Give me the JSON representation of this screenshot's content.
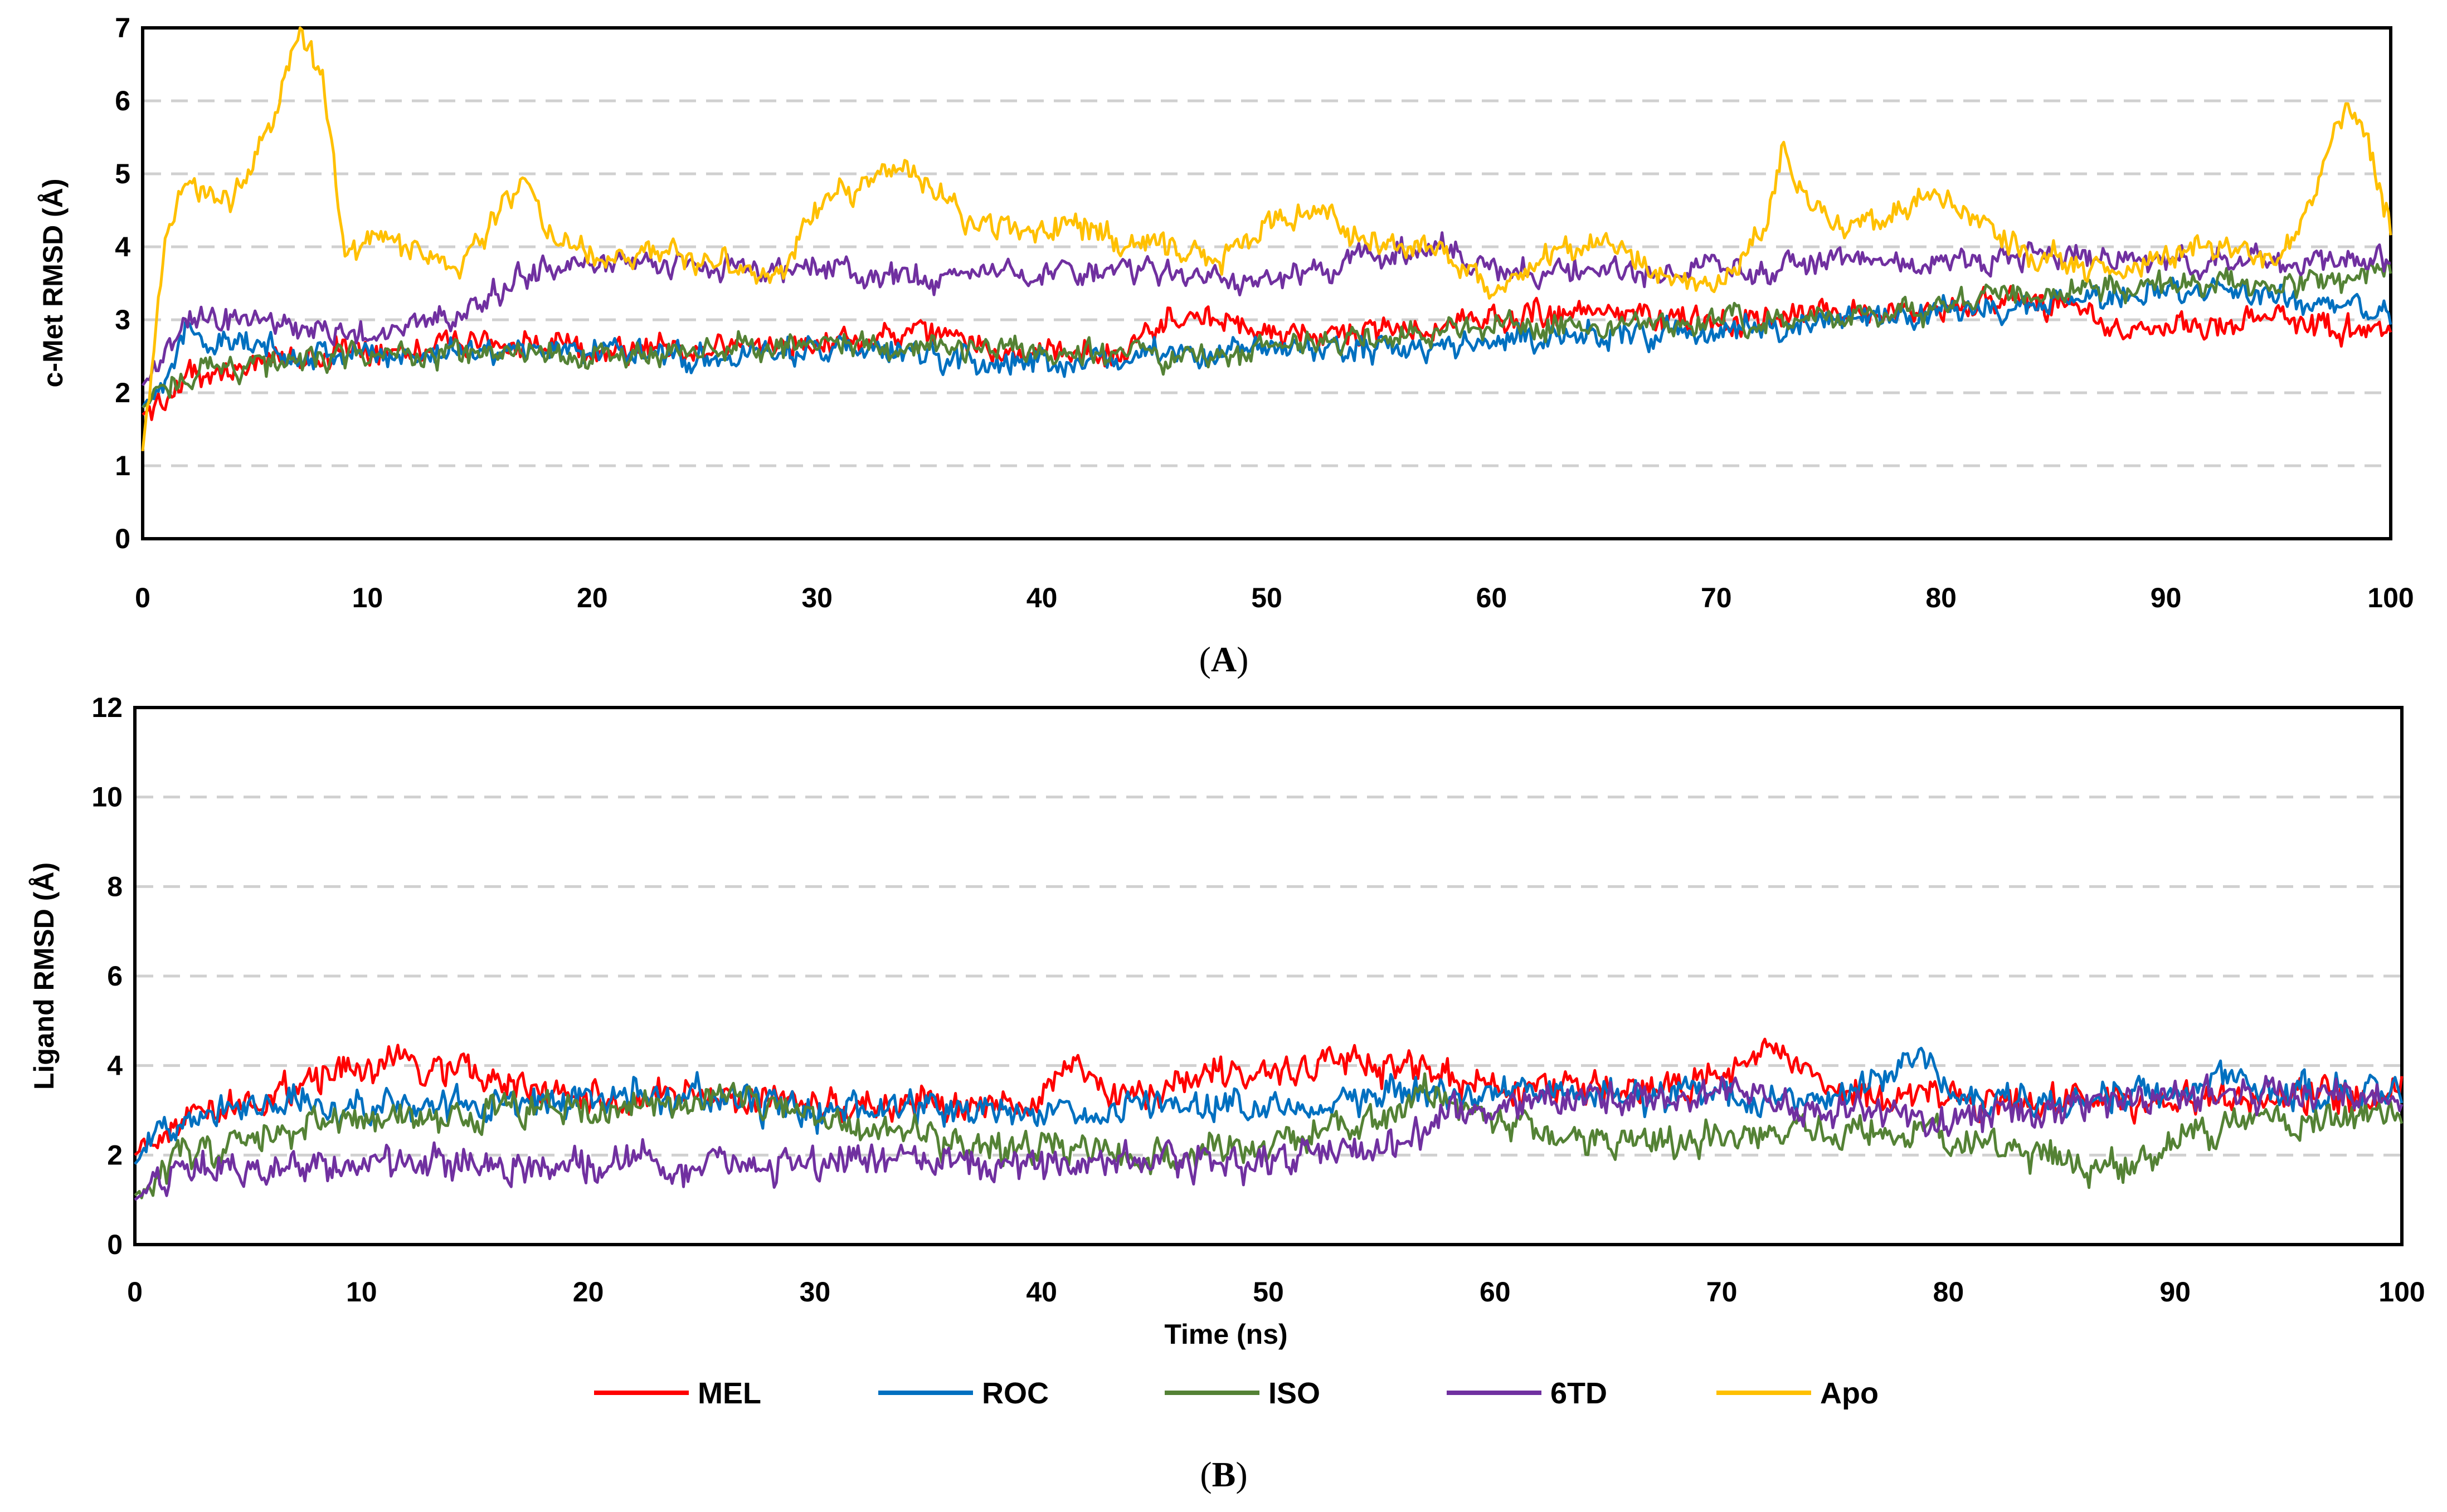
{
  "chart_data": [
    {
      "type": "line",
      "panel": "A",
      "title": "",
      "xlabel": "",
      "ylabel": "c-Met RMSD (Å)",
      "xlim": [
        0,
        100
      ],
      "ylim": [
        0,
        7
      ],
      "xticks": [
        0,
        10,
        20,
        30,
        40,
        50,
        60,
        70,
        80,
        90,
        100
      ],
      "yticks": [
        0,
        1,
        2,
        3,
        4,
        5,
        6,
        7
      ],
      "grid": "horizontal dashed",
      "series": [
        {
          "name": "MEL",
          "color": "#ff0000",
          "x": [
            0,
            2,
            5,
            10,
            15,
            20,
            25,
            30,
            35,
            40,
            44,
            46,
            50,
            55,
            60,
            65,
            70,
            75,
            80,
            85,
            88,
            90,
            95,
            100
          ],
          "y": [
            1.7,
            2.2,
            2.4,
            2.6,
            2.7,
            2.6,
            2.6,
            2.7,
            2.8,
            2.5,
            2.6,
            3.1,
            2.8,
            2.8,
            3.0,
            3.1,
            3.0,
            3.1,
            3.2,
            3.2,
            2.9,
            2.9,
            3.0,
            2.8
          ]
        },
        {
          "name": "ROC",
          "color": "#0070c0",
          "x": [
            0,
            2,
            5,
            10,
            15,
            20,
            25,
            30,
            35,
            40,
            45,
            50,
            55,
            60,
            65,
            70,
            75,
            80,
            85,
            90,
            95,
            100
          ],
          "y": [
            1.8,
            2.8,
            2.6,
            2.5,
            2.6,
            2.6,
            2.5,
            2.6,
            2.5,
            2.4,
            2.5,
            2.6,
            2.6,
            2.7,
            2.8,
            2.8,
            3.0,
            3.1,
            3.2,
            3.4,
            3.3,
            3.1
          ]
        },
        {
          "name": "ISO",
          "color": "#548235",
          "x": [
            0,
            2,
            5,
            10,
            15,
            20,
            25,
            30,
            35,
            40,
            45,
            50,
            55,
            60,
            65,
            70,
            75,
            80,
            85,
            90,
            95,
            100
          ],
          "y": [
            1.8,
            2.3,
            2.4,
            2.5,
            2.5,
            2.5,
            2.6,
            2.7,
            2.6,
            2.6,
            2.5,
            2.6,
            2.8,
            2.9,
            2.9,
            3.0,
            3.0,
            3.2,
            3.4,
            3.5,
            3.5,
            3.6
          ]
        },
        {
          "name": "6TD",
          "color": "#7030a0",
          "x": [
            0,
            2,
            5,
            10,
            15,
            17,
            20,
            25,
            30,
            35,
            40,
            45,
            50,
            55,
            58,
            60,
            65,
            70,
            75,
            80,
            85,
            90,
            95,
            100
          ],
          "y": [
            2.1,
            3.0,
            3.0,
            2.8,
            3.2,
            3.6,
            3.8,
            3.7,
            3.7,
            3.6,
            3.6,
            3.7,
            3.5,
            3.9,
            4.0,
            3.7,
            3.6,
            3.7,
            3.8,
            3.8,
            3.9,
            3.8,
            3.8,
            3.8
          ]
        },
        {
          "name": "Apo",
          "color": "#ffc000",
          "x": [
            0,
            1,
            2,
            4,
            6,
            7,
            8,
            9,
            10,
            12,
            14,
            16,
            17,
            18,
            20,
            22,
            25,
            28,
            30,
            32,
            34,
            35,
            37,
            40,
            42,
            45,
            48,
            50,
            52,
            55,
            58,
            60,
            62,
            65,
            68,
            70,
            72,
            73,
            74,
            76,
            78,
            80,
            82,
            84,
            86,
            88,
            90,
            92,
            95,
            97,
            98,
            99,
            100
          ],
          "y": [
            1.2,
            4.2,
            4.9,
            4.6,
            5.9,
            7.0,
            6.3,
            3.9,
            4.1,
            4.0,
            3.6,
            4.6,
            5.0,
            4.2,
            3.8,
            3.9,
            3.8,
            3.6,
            4.5,
            4.9,
            5.1,
            4.8,
            4.3,
            4.3,
            4.2,
            4.0,
            3.9,
            4.3,
            4.5,
            4.1,
            3.9,
            3.3,
            3.8,
            4.0,
            3.6,
            3.4,
            4.2,
            5.3,
            4.6,
            4.2,
            4.5,
            4.8,
            4.3,
            3.9,
            3.8,
            3.6,
            3.9,
            4.0,
            3.8,
            5.1,
            5.9,
            5.5,
            4.2
          ]
        }
      ]
    },
    {
      "type": "line",
      "panel": "B",
      "title": "",
      "xlabel": "Time (ns)",
      "ylabel": "Ligand RMSD (Å)",
      "xlim": [
        0,
        100
      ],
      "ylim": [
        0,
        12
      ],
      "xticks": [
        0,
        10,
        20,
        30,
        40,
        50,
        60,
        70,
        80,
        90,
        100
      ],
      "yticks": [
        0,
        2,
        4,
        6,
        8,
        10,
        12
      ],
      "grid": "horizontal dashed",
      "series": [
        {
          "name": "MEL",
          "color": "#ff0000",
          "x": [
            0,
            2,
            5,
            8,
            12,
            15,
            18,
            22,
            25,
            30,
            35,
            40,
            41,
            43,
            46,
            50,
            54,
            56,
            60,
            65,
            70,
            72,
            75,
            80,
            85,
            90,
            95,
            100
          ],
          "y": [
            2.0,
            2.9,
            3.2,
            3.7,
            4.1,
            3.8,
            3.3,
            3.2,
            3.3,
            3.1,
            3.2,
            3.0,
            4.2,
            3.3,
            3.6,
            3.7,
            4.3,
            3.9,
            3.5,
            3.5,
            3.6,
            4.5,
            3.4,
            3.2,
            3.2,
            3.3,
            3.2,
            3.3
          ]
        },
        {
          "name": "ROC",
          "color": "#0070c0",
          "x": [
            0,
            2,
            5,
            10,
            15,
            20,
            25,
            30,
            35,
            40,
            45,
            50,
            55,
            60,
            65,
            70,
            75,
            79,
            80,
            85,
            90,
            92,
            95,
            100
          ],
          "y": [
            1.8,
            3.0,
            3.2,
            3.1,
            3.1,
            3.2,
            3.3,
            3.0,
            3.0,
            2.9,
            3.1,
            3.2,
            3.3,
            3.4,
            3.3,
            3.3,
            3.3,
            4.2,
            3.3,
            3.2,
            3.4,
            3.7,
            3.3,
            3.6
          ]
        },
        {
          "name": "ISO",
          "color": "#548235",
          "x": [
            0,
            2,
            5,
            8,
            10,
            15,
            18,
            20,
            25,
            27,
            30,
            35,
            40,
            45,
            50,
            55,
            57,
            60,
            65,
            70,
            75,
            80,
            85,
            88,
            90,
            95,
            100
          ],
          "y": [
            1.1,
            2.0,
            2.3,
            2.6,
            2.8,
            2.9,
            3.0,
            3.0,
            3.3,
            3.2,
            2.7,
            2.4,
            2.2,
            2.0,
            2.2,
            2.8,
            3.5,
            2.7,
            2.3,
            2.3,
            2.6,
            2.5,
            1.9,
            1.6,
            2.5,
            2.8,
            2.8
          ]
        },
        {
          "name": "6TD",
          "color": "#7030a0",
          "x": [
            0,
            2,
            5,
            10,
            15,
            20,
            25,
            30,
            35,
            40,
            45,
            50,
            55,
            58,
            60,
            65,
            70,
            75,
            80,
            85,
            90,
            95,
            100
          ],
          "y": [
            1.0,
            1.8,
            1.7,
            1.7,
            1.8,
            1.8,
            1.8,
            1.8,
            1.9,
            1.8,
            1.8,
            1.9,
            2.1,
            2.9,
            3.2,
            3.3,
            3.2,
            3.0,
            2.7,
            3.1,
            3.3,
            3.4,
            3.3
          ]
        }
      ]
    }
  ],
  "panels": {
    "a": {
      "label_open": "(",
      "label_letter": "A",
      "label_close": ")"
    },
    "b": {
      "label_open": "(",
      "label_letter": "B",
      "label_close": ")"
    }
  },
  "legend": [
    {
      "name": "MEL",
      "color": "#ff0000"
    },
    {
      "name": "ROC",
      "color": "#0070c0"
    },
    {
      "name": "ISO",
      "color": "#548235"
    },
    {
      "name": "6TD",
      "color": "#7030a0"
    },
    {
      "name": "Apo",
      "color": "#ffc000"
    }
  ]
}
